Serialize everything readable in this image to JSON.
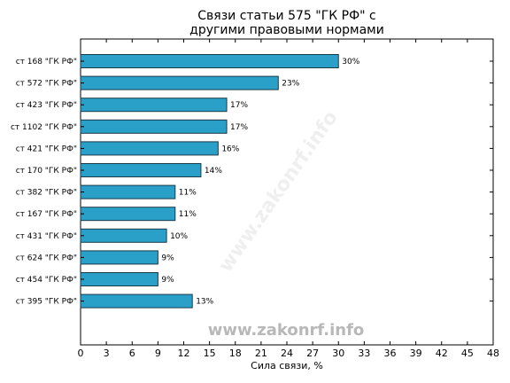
{
  "chart_data": {
    "type": "bar",
    "orientation": "horizontal",
    "title_lines": [
      "Связи статьи 575 \"ГК РФ\" с",
      "другими правовыми нормами"
    ],
    "categories": [
      "ст 168 \"ГК РФ\"",
      "ст 572 \"ГК РФ\"",
      "ст 423 \"ГК РФ\"",
      "ст 1102 \"ГК РФ\"",
      "ст 421 \"ГК РФ\"",
      "ст 170 \"ГК РФ\"",
      "ст 382 \"ГК РФ\"",
      "ст 167 \"ГК РФ\"",
      "ст 431 \"ГК РФ\"",
      "ст 624 \"ГК РФ\"",
      "ст 454 \"ГК РФ\"",
      "ст 395 \"ГК РФ\""
    ],
    "values": [
      30,
      23,
      17,
      17,
      16,
      14,
      11,
      11,
      10,
      9,
      9,
      13
    ],
    "data_labels": [
      "30%",
      "23%",
      "17%",
      "17%",
      "16%",
      "14%",
      "11%",
      "11%",
      "10%",
      "9%",
      "9%",
      "13%"
    ],
    "xlabel": "Сила связи, %",
    "ylabel": "",
    "xlim": [
      0,
      48
    ],
    "xticks": [
      0,
      3,
      6,
      9,
      12,
      15,
      18,
      21,
      24,
      27,
      30,
      33,
      36,
      39,
      42,
      45,
      48
    ],
    "grid": false,
    "bar_color": "#2aa0c8",
    "bar_edge_color": "#1a3a4a",
    "watermark": "www.zakonrf.info",
    "watermark_color": "#b8b8b8"
  }
}
